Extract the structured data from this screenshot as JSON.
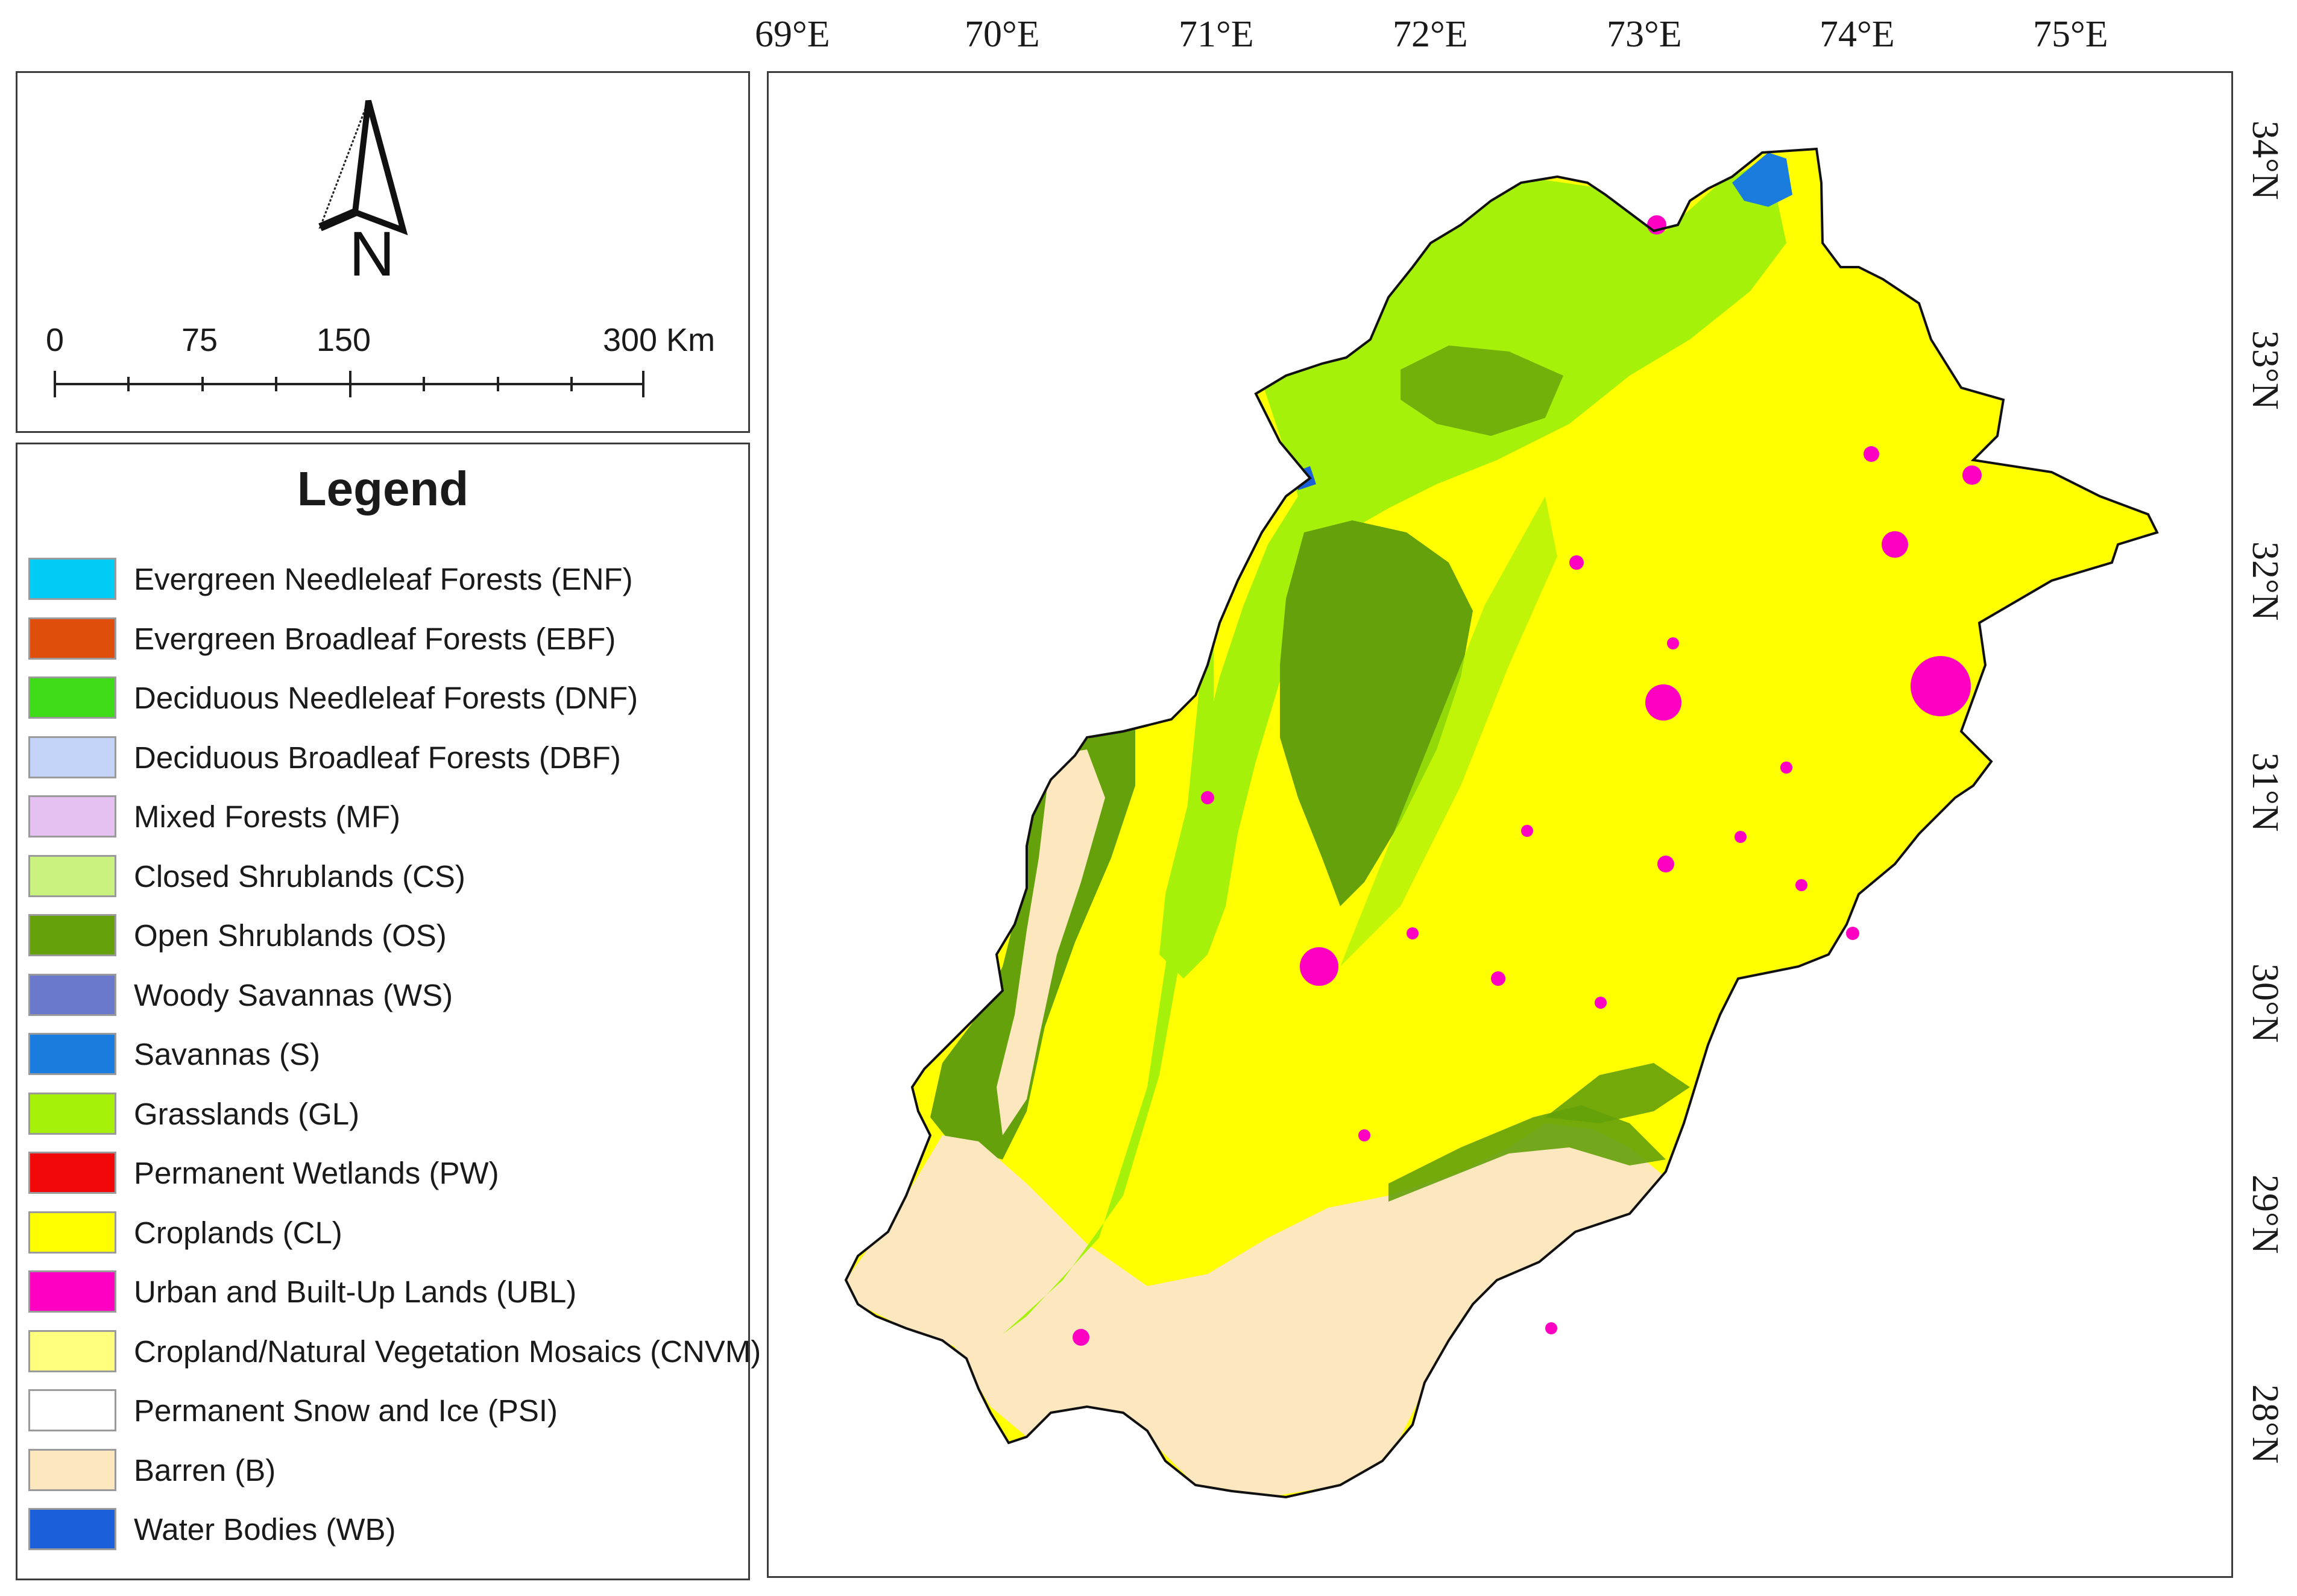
{
  "north_arrow": {
    "letter": "N",
    "icon": "north-arrow-icon"
  },
  "scale_bar": {
    "labels": [
      "0",
      "75",
      "150",
      "300 Km"
    ]
  },
  "legend": {
    "title": "Legend",
    "items": [
      {
        "label": "Evergreen Needleleaf Forests (ENF)",
        "color": "#00ccf5"
      },
      {
        "label": "Evergreen Broadleaf Forests (EBF)",
        "color": "#e04e0c"
      },
      {
        "label": "Deciduous Needleleaf Forests (DNF)",
        "color": "#3fdb18"
      },
      {
        "label": "Deciduous Broadleaf Forests (DBF)",
        "color": "#c3d3f7"
      },
      {
        "label": "Mixed Forests (MF)",
        "color": "#e5c1f2"
      },
      {
        "label": "Closed Shrublands (CS)",
        "color": "#c9f27e"
      },
      {
        "label": "Open Shrublands (OS)",
        "color": "#64a10a"
      },
      {
        "label": "Woody Savannas (WS)",
        "color": "#6a79cc"
      },
      {
        "label": "Savannas (S)",
        "color": "#1a7ddd"
      },
      {
        "label": "Grasslands (GL)",
        "color": "#a6f10a"
      },
      {
        "label": "Permanent Wetlands (PW)",
        "color": "#f20808"
      },
      {
        "label": "Croplands (CL)",
        "color": "#ffff00"
      },
      {
        "label": "Urban and Built-Up Lands (UBL)",
        "color": "#ff00c3"
      },
      {
        "label": "Cropland/Natural Vegetation Mosaics (CNVM)",
        "color": "#ffff7d"
      },
      {
        "label": "Permanent Snow and Ice (PSI)",
        "color": "#ffffff"
      },
      {
        "label": "Barren (B)",
        "color": "#fce7bf"
      },
      {
        "label": "Water Bodies (WB)",
        "color": "#1c5fdb"
      }
    ]
  },
  "map": {
    "longitude_labels": [
      "69°E",
      "70°E",
      "71°E",
      "72°E",
      "73°E",
      "74°E",
      "75°E"
    ],
    "latitude_labels": [
      "34°N",
      "33°N",
      "32°N",
      "31°N",
      "30°N",
      "29°N",
      "28°N"
    ]
  }
}
